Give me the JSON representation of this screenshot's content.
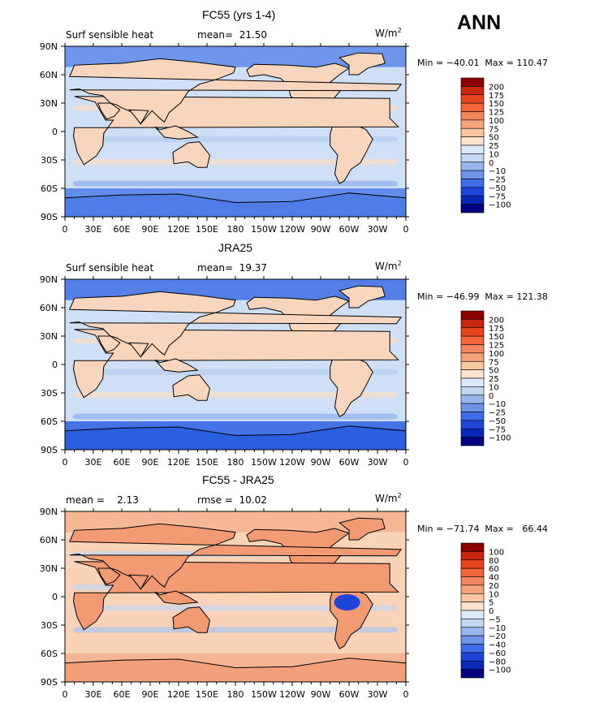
{
  "page_label": "ANN",
  "chart_data": [
    {
      "type": "heatmap",
      "title": "FC55 (yrs 1-4)",
      "left_text": "Surf sensible heat",
      "center_text": "mean=  21.50",
      "units": "W/m",
      "units_sup": "2",
      "stats": "Min = −40.01  Max = 110.47",
      "x_ticks": [
        "0",
        "30E",
        "60E",
        "90E",
        "120E",
        "150E",
        "180",
        "150W",
        "120W",
        "90W",
        "60W",
        "30W",
        "0"
      ],
      "y_ticks": [
        "90N",
        "60N",
        "30N",
        "0",
        "30S",
        "60S",
        "90S"
      ],
      "colorbar_labels": [
        "200",
        "175",
        "150",
        "125",
        "100",
        "75",
        "50",
        "25",
        "10",
        "0",
        "−10",
        "−25",
        "−50",
        "−75",
        "−100"
      ],
      "colorbar_colors": [
        "#8b0000",
        "#c8260e",
        "#e8451e",
        "#f2643a",
        "#f4855c",
        "#f6a27c",
        "#f9c6a2",
        "#fde3cf",
        "#dbeaf9",
        "#c3d6f2",
        "#98b5ec",
        "#6f93e8",
        "#3e6cea",
        "#1f44d9",
        "#0a28b8",
        "#000080"
      ],
      "background": "#cfe0f6",
      "land": "#f8d6bd",
      "polar": "#4f7de8"
    },
    {
      "type": "heatmap",
      "title": "JRA25",
      "left_text": "Surf sensible heat",
      "center_text": "mean=  19.37",
      "units": "W/m",
      "units_sup": "2",
      "stats": "Min = −46.99  Max = 121.38",
      "x_ticks": [
        "0",
        "30E",
        "60E",
        "90E",
        "120E",
        "150E",
        "180",
        "150W",
        "120W",
        "90W",
        "60W",
        "30W",
        "0"
      ],
      "y_ticks": [
        "90N",
        "60N",
        "30N",
        "0",
        "30S",
        "60S",
        "90S"
      ],
      "colorbar_labels": [
        "200",
        "175",
        "150",
        "125",
        "100",
        "75",
        "50",
        "25",
        "10",
        "0",
        "−10",
        "−25",
        "−50",
        "−75",
        "−100"
      ],
      "colorbar_colors": [
        "#8b0000",
        "#c8260e",
        "#e8451e",
        "#f2643a",
        "#f4855c",
        "#f6a27c",
        "#f9c6a2",
        "#fde3cf",
        "#dbeaf9",
        "#c3d6f2",
        "#98b5ec",
        "#6f93e8",
        "#3e6cea",
        "#1f44d9",
        "#0a28b8",
        "#000080"
      ],
      "background": "#cfe0f6",
      "land": "#f8d6bd",
      "polar": "#2a5fe0"
    },
    {
      "type": "heatmap",
      "title": "FC55 - JRA25",
      "left_text": "mean =    2.13",
      "center_text": "rmse =  10.02",
      "units": "W/m",
      "units_sup": "2",
      "stats": "Min = −71.74  Max =   66.44",
      "x_ticks": [
        "0",
        "30E",
        "60E",
        "90E",
        "120E",
        "150E",
        "180",
        "150W",
        "120W",
        "90W",
        "60W",
        "30W",
        "0"
      ],
      "y_ticks": [
        "90N",
        "60N",
        "30N",
        "0",
        "30S",
        "60S",
        "90S"
      ],
      "colorbar_labels": [
        "100",
        "80",
        "60",
        "40",
        "20",
        "10",
        "5",
        "0",
        "−5",
        "−10",
        "−20",
        "−40",
        "−60",
        "−80",
        "−100"
      ],
      "colorbar_colors": [
        "#8b0000",
        "#c8260e",
        "#e8451e",
        "#f2643a",
        "#f4855c",
        "#f6a27c",
        "#f9c6a2",
        "#fde3cf",
        "#dbeaf9",
        "#c3d6f2",
        "#98b5ec",
        "#6f93e8",
        "#3e6cea",
        "#1f44d9",
        "#0a28b8",
        "#000080"
      ],
      "background": "#f9d3b8",
      "land": "#f29a72",
      "polar": "#f2a07a"
    }
  ]
}
